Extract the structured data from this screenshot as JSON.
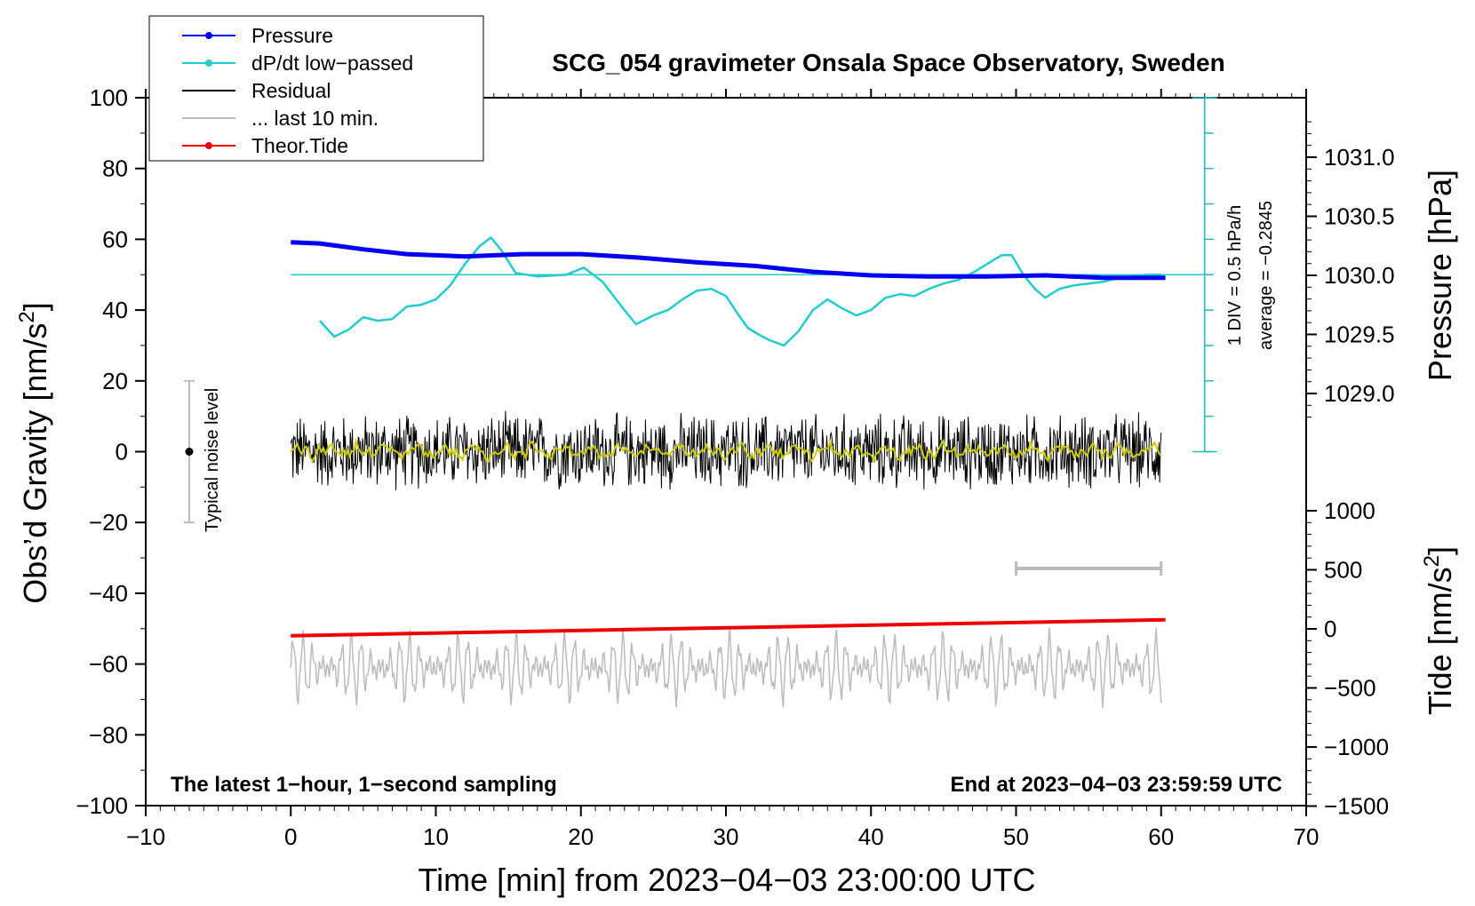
{
  "chart_data": {
    "type": "line",
    "title": "SCG_054 gravimeter Onsala Space Observatory, Sweden",
    "xlabel": "Time [min] from 2023−04−03 23:00:00 UTC",
    "ylabel_left": "Obs’d Gravity [nm/s",
    "ylabel_left_sup": "2",
    "ylabel_left_end": "]",
    "ylabel_right_top": "Pressure [hPa]",
    "ylabel_right_bottom": "Tide [nm/s",
    "ylabel_right_bottom_sup": "2",
    "ylabel_right_bottom_end": "]",
    "xlim": [
      -10,
      70
    ],
    "ylim_left": [
      -100,
      100
    ],
    "x_ticks": [
      "−10",
      "0",
      "10",
      "20",
      "30",
      "40",
      "50",
      "60",
      "70"
    ],
    "y_ticks_left": [
      "100",
      "80",
      "60",
      "40",
      "20",
      "0",
      "−20",
      "−40",
      "−60",
      "−80",
      "−100"
    ],
    "pressure_ticks": [
      "1031.0",
      "1030.5",
      "1030.0",
      "1029.5",
      "1029.0"
    ],
    "tide_ticks": [
      "1000",
      "500",
      "0",
      "−500",
      "−1000",
      "−1500"
    ],
    "legend": [
      {
        "label": "Pressure",
        "color": "#0000ee",
        "marker": true
      },
      {
        "label": "dP/dt low−passed",
        "color": "#22cccc",
        "marker": true
      },
      {
        "label": "Residual",
        "color": "#000000",
        "marker": false
      },
      {
        "label": "... last 10 min.",
        "color": "#bbbbbb",
        "marker": false
      },
      {
        "label": "Theor.Tide",
        "color": "#ee0000",
        "marker": true
      }
    ],
    "annotations": {
      "noise": "Typical noise level",
      "div": "1 DIV = 0.5 hPa/h",
      "average": "average = −0.2845",
      "footer_left": "The latest 1−hour, 1−second sampling",
      "footer_right": "End at 2023−04−03 23:59:59 UTC"
    },
    "noise_bar": {
      "x": -7,
      "low": -20,
      "high": 20
    },
    "last10_bar": {
      "x_start": 50,
      "x_end": 60,
      "y": -33
    },
    "pressure_hpa": {
      "x": [
        0,
        2,
        5,
        8,
        12,
        16,
        20,
        24,
        28,
        32,
        36,
        40,
        44,
        48,
        52,
        56,
        60.3
      ],
      "y": [
        1030.28,
        1030.27,
        1030.22,
        1030.18,
        1030.16,
        1030.18,
        1030.18,
        1030.15,
        1030.11,
        1030.08,
        1030.03,
        1030.0,
        1029.99,
        1029.99,
        1030.0,
        1029.98,
        1029.98
      ]
    },
    "dpdt_series": {
      "x": [
        2,
        3,
        4,
        5,
        6,
        7,
        8,
        9,
        10,
        11,
        12,
        13,
        13.8,
        14.5,
        15.5,
        17,
        19,
        20.2,
        21.5,
        23,
        23.8,
        25,
        26,
        27,
        28,
        29,
        30,
        30.8,
        31.5,
        32.3,
        33,
        34,
        35,
        36,
        37,
        38,
        39,
        40,
        41,
        42,
        43,
        44,
        45,
        46,
        47,
        48,
        49,
        49.7,
        50.5,
        51.3,
        52,
        53,
        54,
        55,
        56,
        57,
        58,
        59,
        60
      ],
      "y": [
        37,
        32.5,
        34.5,
        38,
        37,
        37.5,
        41,
        41.5,
        43,
        47,
        53,
        58,
        60.5,
        57,
        50.5,
        49.5,
        50,
        52,
        48,
        40,
        36,
        38.5,
        40,
        43,
        45.5,
        46,
        44,
        39,
        35,
        33,
        31.5,
        30,
        34,
        40,
        43,
        40.5,
        38.5,
        40,
        43.5,
        44.5,
        44,
        46,
        47.5,
        48.5,
        50.5,
        53,
        55.5,
        55.5,
        50,
        46,
        43.5,
        46,
        47,
        47.5,
        48,
        49,
        49.5,
        50,
        50
      ]
    },
    "dpdt_average_line": 50,
    "residual_range": {
      "x": [
        0,
        60
      ],
      "amplitude": 12
    },
    "residual_smooth": {
      "x": [
        0,
        60
      ],
      "level": 0,
      "color": "#cccc00"
    },
    "last10_series": {
      "x": [
        0,
        60
      ],
      "center": -61,
      "amplitude": 9
    },
    "tide": {
      "x": [
        0,
        60.3
      ],
      "y_left_units": [
        -52,
        -47.5
      ]
    }
  }
}
